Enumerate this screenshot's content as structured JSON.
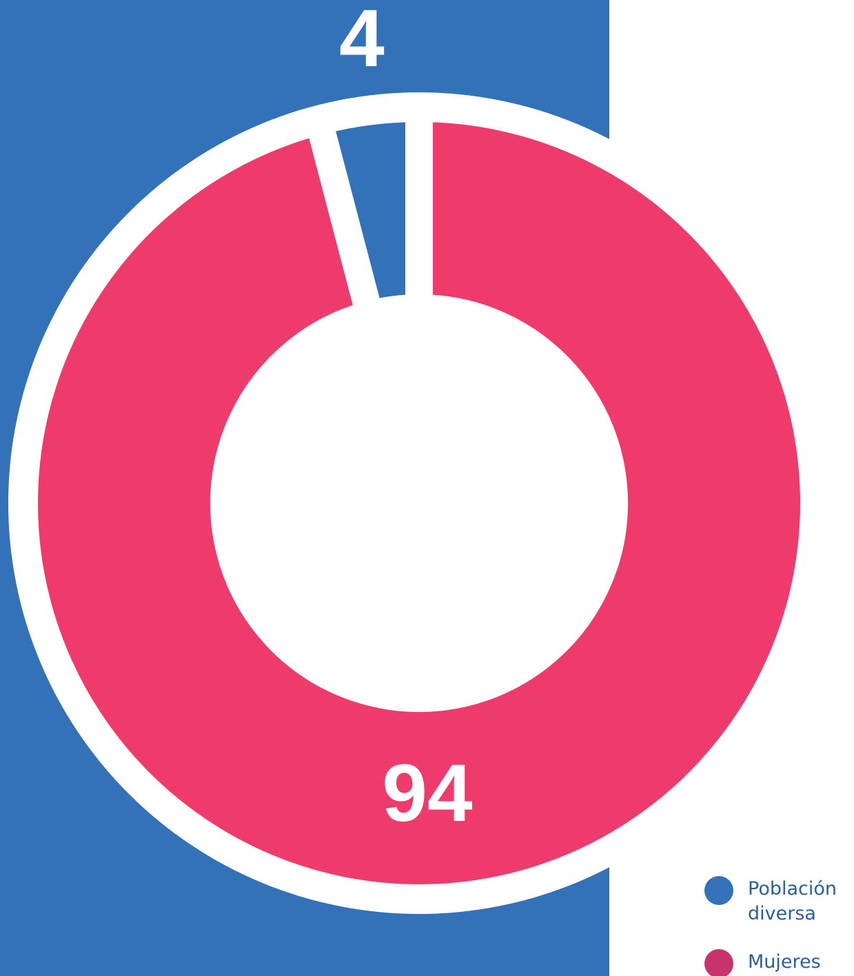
{
  "chart_data": {
    "type": "donut",
    "categories": [
      "Población diversa",
      "Mujeres"
    ],
    "values": [
      4,
      94
    ],
    "colors": [
      "#3372b8",
      "#ef3b6c"
    ],
    "legend_colors": [
      "#3372b8",
      "#c8336b"
    ]
  }
}
